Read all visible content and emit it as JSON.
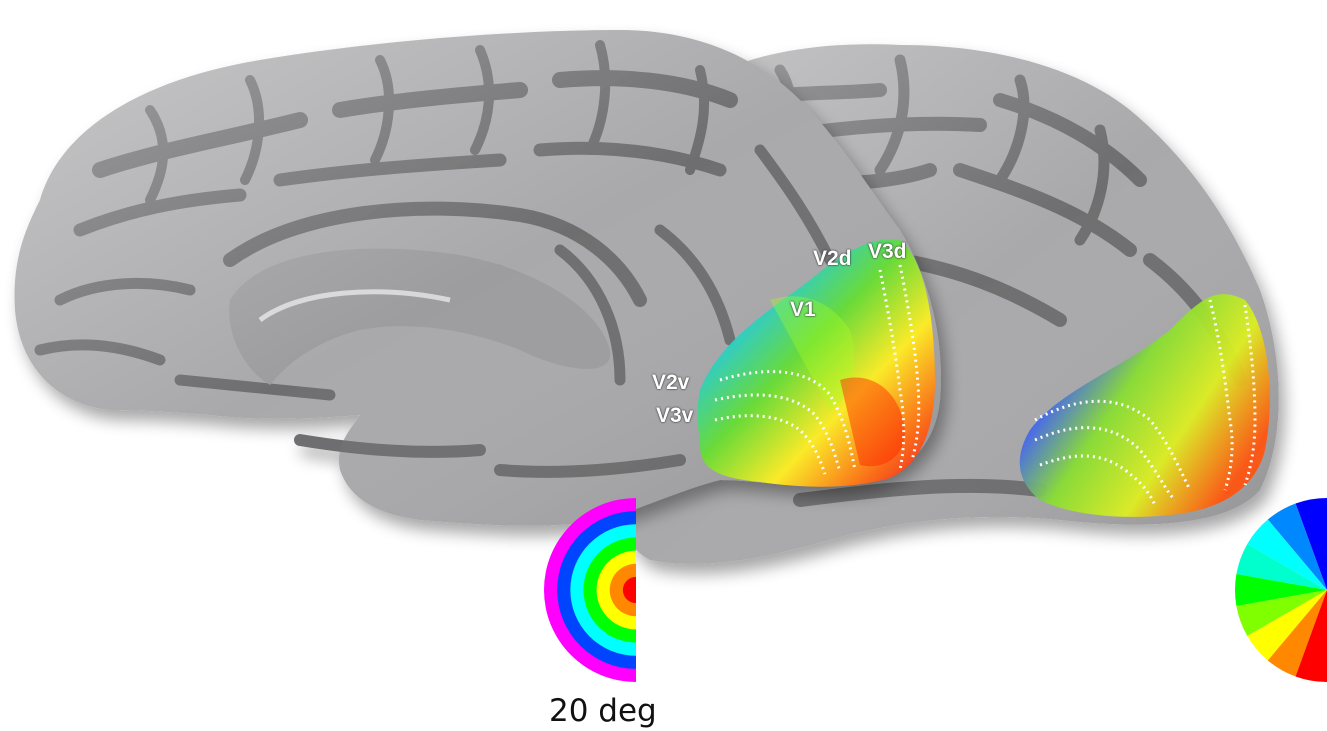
{
  "figure": {
    "area_labels": {
      "v1": "V1",
      "v2d": "V2d",
      "v3d": "V3d",
      "v2v": "V2v",
      "v3v": "V3v"
    },
    "eccentricity_legend": {
      "label": "20 deg",
      "ring_colors": [
        "#ff0000",
        "#ff8800",
        "#ffff00",
        "#00ff00",
        "#00ffff",
        "#0044ff",
        "#ff00ff"
      ]
    },
    "polar_angle_legend": {
      "wedge_colors": [
        "#ff0000",
        "#ff8800",
        "#ffff00",
        "#80ff00",
        "#00ff00",
        "#00ffcc",
        "#00ffff",
        "#0088ff",
        "#0000ff"
      ]
    },
    "colors": {
      "cortex_gyri": "#a9a9ab",
      "cortex_sulci": "#6e6e70",
      "boundary_line": "#ffffff"
    }
  }
}
